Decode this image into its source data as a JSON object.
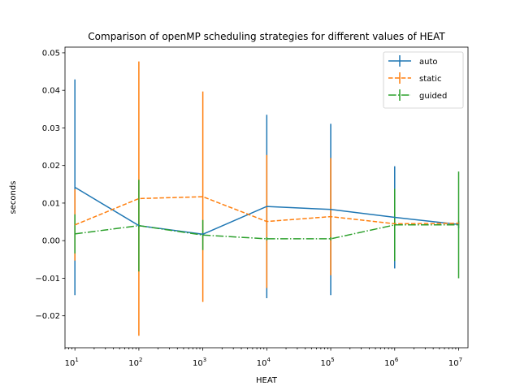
{
  "chart_data": {
    "type": "line",
    "title": "Comparison of openMP scheduling strategies for different values of HEAT",
    "xlabel": "HEAT",
    "ylabel": "seconds",
    "xscale": "log",
    "xlim": [
      7,
      14000000
    ],
    "ylim": [
      -0.0285,
      0.0515
    ],
    "x": [
      10,
      100,
      1000,
      10000,
      100000,
      1000000,
      10000000
    ],
    "x_tick_labels": [
      {
        "base": "10",
        "exp": "1"
      },
      {
        "base": "10",
        "exp": "2"
      },
      {
        "base": "10",
        "exp": "3"
      },
      {
        "base": "10",
        "exp": "4"
      },
      {
        "base": "10",
        "exp": "5"
      },
      {
        "base": "10",
        "exp": "6"
      },
      {
        "base": "10",
        "exp": "7"
      }
    ],
    "y_ticks": [
      -0.02,
      -0.01,
      0.0,
      0.01,
      0.02,
      0.03,
      0.04,
      0.05
    ],
    "y_tick_labels": [
      "−0.02",
      "−0.01",
      "0.00",
      "0.01",
      "0.02",
      "0.03",
      "0.04",
      "0.05"
    ],
    "grid": false,
    "legend_position": "top-right",
    "series": [
      {
        "name": "auto",
        "color": "#1f77b4",
        "linestyle": "solid",
        "values": [
          0.0142,
          0.004,
          0.0017,
          0.0091,
          0.0083,
          0.0062,
          0.0043
        ],
        "errors": [
          0.0287,
          0.0005,
          0.0006,
          0.0244,
          0.0228,
          0.0136,
          0.001
        ]
      },
      {
        "name": "static",
        "color": "#ff7f0e",
        "linestyle": "dashed",
        "values": [
          0.0042,
          0.0112,
          0.0117,
          0.0051,
          0.0064,
          0.0045,
          0.0046
        ],
        "errors": [
          0.0095,
          0.0365,
          0.028,
          0.0177,
          0.0156,
          0.0008,
          0.0004
        ]
      },
      {
        "name": "guided",
        "color": "#2ca02c",
        "linestyle": "dashdot",
        "values": [
          0.0018,
          0.004,
          0.0015,
          0.0005,
          0.0005,
          0.0042,
          0.0042
        ],
        "errors": [
          0.0052,
          0.0122,
          0.004,
          0.0004,
          0.0004,
          0.0096,
          0.0142
        ]
      }
    ]
  }
}
